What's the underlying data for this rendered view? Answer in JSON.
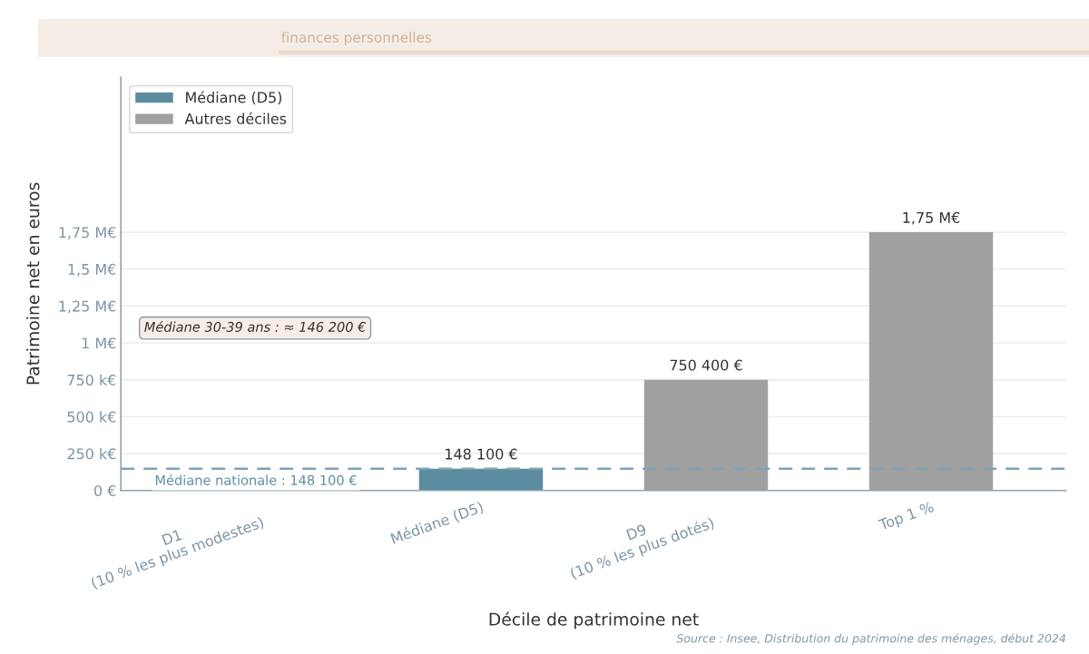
{
  "chart_data": {
    "type": "bar",
    "subtitle": "finances personnelles",
    "xlabel": "Décile de patrimoine net",
    "ylabel": "Patrimoine net en euros",
    "categories": [
      "D1\n(10 % les plus modestes)",
      "Médiane (D5)",
      "D9\n(10 % les plus dotés)",
      "Top 1 %"
    ],
    "series": [
      {
        "name": "Médiane (D5)",
        "color": "#5b8c9f",
        "values": [
          null,
          148100,
          null,
          null
        ],
        "value_labels": [
          null,
          "148 100 €",
          null,
          null
        ]
      },
      {
        "name": "Autres déciles",
        "color": "#a0a0a0",
        "values": [
          null,
          null,
          750400,
          1750000
        ],
        "value_labels": [
          null,
          null,
          "750 400 €",
          "1,75 M€"
        ]
      }
    ],
    "ylim": [
      0,
      2800000
    ],
    "yticks": [
      {
        "value": 0,
        "label": "0 €"
      },
      {
        "value": 250000,
        "label": "250 k€"
      },
      {
        "value": 500000,
        "label": "500 k€"
      },
      {
        "value": 750000,
        "label": "750 k€"
      },
      {
        "value": 1000000,
        "label": "1 M€"
      },
      {
        "value": 1250000,
        "label": "1,25 M€"
      },
      {
        "value": 1500000,
        "label": "1,5 M€"
      },
      {
        "value": 1750000,
        "label": "1,75 M€"
      }
    ],
    "grid": "y",
    "legend": "top left",
    "ref_lines": [
      {
        "axis": "y",
        "value": 148100,
        "label": "Médiane nationale : 148 100 €",
        "color": "#7fa3b6",
        "line_style": "dashed"
      }
    ],
    "annotations": [
      "Médiane 30-39 ans : ≈ 146 200 €",
      "Source : Insee, Distribution du patrimoine des ménages, début 2024"
    ]
  }
}
